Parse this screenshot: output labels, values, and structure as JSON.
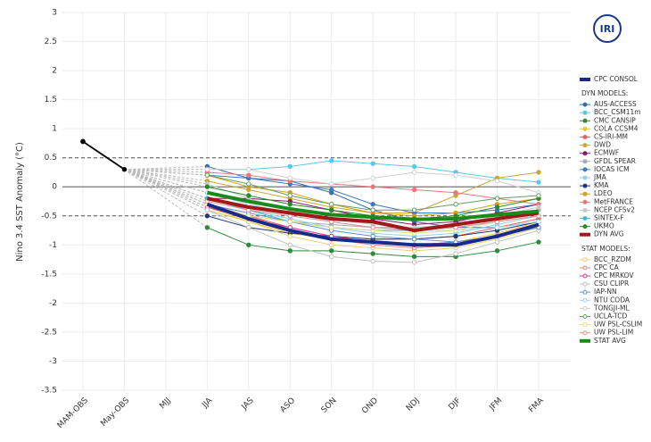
{
  "chart_data": {
    "type": "line",
    "logo_text": "IRI",
    "y_label": "Nino 3.4 SST Anomaly (°C)",
    "categories": [
      "MAM-OBS",
      "May-OBS",
      "MJJ",
      "JJA",
      "JAS",
      "ASO",
      "SON",
      "OND",
      "NDJ",
      "DJF",
      "JFM",
      "FMA"
    ],
    "ylim": [
      -3.5,
      3
    ],
    "yticks": [
      3,
      2.5,
      2,
      1.5,
      1,
      0.5,
      0,
      -0.5,
      -1,
      -1.5,
      -2,
      -2.5,
      -3,
      -3.5
    ],
    "reference_lines": [
      0.5,
      -0.5
    ],
    "zero_line": 0,
    "grid": true,
    "legend_headings": [
      "DYN MODELS:",
      "STAT MODELS:"
    ],
    "observed": {
      "color": "#000000",
      "values": [
        0.78,
        0.3,
        null,
        null,
        null,
        null,
        null,
        null,
        null,
        null,
        null,
        null
      ]
    },
    "series": [
      {
        "name": "CPC CONSOL",
        "color": "#1a2a8a",
        "width": 4,
        "values": [
          null,
          null,
          null,
          -0.3,
          -0.55,
          -0.75,
          -0.9,
          -0.95,
          -1.0,
          -1.0,
          -0.85,
          -0.65
        ]
      },
      {
        "name": "AUS-ACCESS",
        "group": 0,
        "color": "#3a6ea5",
        "values": [
          null,
          null,
          null,
          0.35,
          0.15,
          0.1,
          -0.1,
          -0.4,
          -0.6,
          -0.7,
          -0.7,
          -0.6
        ]
      },
      {
        "name": "BCC_CSM11m",
        "group": 0,
        "color": "#5bc8e8",
        "values": [
          null,
          null,
          null,
          0.3,
          0.3,
          0.35,
          0.45,
          0.4,
          0.35,
          0.25,
          0.15,
          0.08
        ]
      },
      {
        "name": "CMC CANSIP",
        "group": 0,
        "color": "#2e8b3a",
        "values": [
          null,
          null,
          null,
          -0.7,
          -1.0,
          -1.1,
          -1.1,
          -1.15,
          -1.2,
          -1.2,
          -1.1,
          -0.95
        ]
      },
      {
        "name": "COLA CCSM4",
        "group": 0,
        "color": "#e8c840",
        "values": [
          null,
          null,
          null,
          -0.4,
          -0.6,
          -0.8,
          -0.9,
          -0.95,
          -1.0,
          -0.95,
          -0.8,
          -0.6
        ]
      },
      {
        "name": "CS-IRI-MM",
        "group": 0,
        "color": "#e86060",
        "values": [
          null,
          null,
          null,
          -0.3,
          -0.5,
          -0.7,
          -0.85,
          -0.9,
          -0.9,
          -0.85,
          -0.7,
          -0.55
        ]
      },
      {
        "name": "DWD",
        "group": 0,
        "color": "#c8a838",
        "values": [
          null,
          null,
          null,
          0.1,
          -0.05,
          -0.2,
          -0.35,
          -0.45,
          -0.45,
          -0.15,
          0.15,
          0.25
        ]
      },
      {
        "name": "ECMWF",
        "group": 0,
        "color": "#8b1a6b",
        "values": [
          null,
          null,
          null,
          -0.2,
          -0.2,
          -0.25,
          -0.4,
          -0.55,
          -0.65,
          -0.6,
          -0.45,
          -0.3
        ]
      },
      {
        "name": "GFDL SPEAR",
        "group": 0,
        "color": "#aaaaaa",
        "values": [
          null,
          null,
          null,
          -0.35,
          -0.5,
          -0.6,
          -0.65,
          -0.7,
          -0.7,
          -0.65,
          -0.55,
          -0.4
        ]
      },
      {
        "name": "IOCAS ICM",
        "group": 0,
        "color": "#3a78c0",
        "values": [
          null,
          null,
          null,
          0.2,
          0.15,
          0.05,
          -0.05,
          -0.3,
          -0.45,
          -0.45,
          -0.4,
          -0.3
        ]
      },
      {
        "name": "JMA",
        "group": 0,
        "color": "#90d0f0",
        "values": [
          null,
          null,
          null,
          -0.2,
          -0.4,
          -0.55,
          -0.7,
          -0.8,
          -0.85,
          -0.8,
          -0.65,
          -0.5
        ]
      },
      {
        "name": "KMA",
        "group": 0,
        "color": "#1a3a7a",
        "values": [
          null,
          null,
          null,
          -0.5,
          -0.7,
          -0.8,
          -0.85,
          -0.9,
          -0.9,
          -0.85,
          -0.75,
          -0.6
        ]
      },
      {
        "name": "LDEO",
        "group": 0,
        "color": "#d4a020",
        "values": [
          null,
          null,
          null,
          0.2,
          0.0,
          -0.1,
          -0.3,
          -0.45,
          -0.5,
          -0.45,
          -0.3,
          -0.2
        ]
      },
      {
        "name": "MetFRANCE",
        "group": 0,
        "color": "#e87878",
        "values": [
          null,
          null,
          null,
          0.25,
          0.2,
          0.1,
          0.05,
          0.0,
          -0.05,
          -0.1,
          -0.2,
          -0.3
        ]
      },
      {
        "name": "NCEP CFSv2",
        "group": 0,
        "color": "#c8c8c8",
        "values": [
          null,
          null,
          null,
          0.05,
          -0.2,
          -0.4,
          -0.55,
          -0.65,
          -0.7,
          -0.65,
          -0.5,
          -0.35
        ]
      },
      {
        "name": "SINTEX-F",
        "group": 0,
        "color": "#40b8d8",
        "values": [
          null,
          null,
          null,
          -0.2,
          -0.4,
          -0.6,
          -0.7,
          -0.75,
          -0.75,
          -0.7,
          -0.6,
          -0.5
        ]
      },
      {
        "name": "UKMO",
        "group": 0,
        "color": "#2a8a2a",
        "values": [
          null,
          null,
          null,
          0.0,
          -0.15,
          -0.3,
          -0.4,
          -0.5,
          -0.55,
          -0.5,
          -0.35,
          -0.2
        ]
      },
      {
        "name": "DYN AVG",
        "group": 0,
        "color": "#a01818",
        "width": 4,
        "values": [
          null,
          null,
          null,
          -0.2,
          -0.35,
          -0.45,
          -0.55,
          -0.6,
          -0.75,
          -0.65,
          -0.55,
          -0.45
        ]
      },
      {
        "name": "BCC_RZDM",
        "group": 1,
        "color": "#e8d070",
        "values": [
          null,
          null,
          null,
          -0.35,
          -0.6,
          -0.85,
          -1.0,
          -1.05,
          -1.1,
          -1.05,
          -0.9,
          -0.7
        ]
      },
      {
        "name": "CPC CA",
        "group": 1,
        "color": "#f08080",
        "values": [
          null,
          null,
          null,
          -0.3,
          -0.5,
          -0.75,
          -0.9,
          -1.0,
          -1.05,
          -1.0,
          -0.85,
          -0.7
        ]
      },
      {
        "name": "CPC MRKOV",
        "group": 1,
        "color": "#d04090",
        "values": [
          null,
          null,
          null,
          -0.35,
          -0.55,
          -0.7,
          -0.85,
          -0.95,
          -1.0,
          -0.95,
          -0.85,
          -0.7
        ]
      },
      {
        "name": "CSU CLIPR",
        "group": 1,
        "color": "#c0c0c0",
        "values": [
          null,
          null,
          null,
          -0.4,
          -0.7,
          -1.0,
          -1.2,
          -1.28,
          -1.3,
          -1.15,
          -0.95,
          -0.75
        ]
      },
      {
        "name": "IAP-NN",
        "group": 1,
        "color": "#6090d0",
        "values": [
          null,
          null,
          null,
          -0.3,
          -0.45,
          -0.6,
          -0.75,
          -0.85,
          -0.9,
          -0.95,
          -0.85,
          -0.7
        ]
      },
      {
        "name": "NTU CODA",
        "group": 1,
        "color": "#a0d8f0",
        "values": [
          null,
          null,
          null,
          -0.1,
          -0.3,
          -0.45,
          -0.6,
          -0.7,
          -0.75,
          -0.75,
          -0.7,
          -0.6
        ]
      },
      {
        "name": "TONGJI-ML",
        "group": 1,
        "color": "#d0d0d0",
        "values": [
          null,
          null,
          null,
          0.3,
          0.3,
          0.15,
          0.05,
          0.15,
          0.25,
          0.2,
          0.1,
          -0.1
        ]
      },
      {
        "name": "UCLA-TCD",
        "group": 1,
        "color": "#60a060",
        "values": [
          null,
          null,
          null,
          0.2,
          0.05,
          -0.15,
          -0.3,
          -0.4,
          -0.4,
          -0.3,
          -0.2,
          -0.15
        ]
      },
      {
        "name": "UW PSL-CSLIM",
        "group": 1,
        "color": "#e0e080",
        "values": [
          null,
          null,
          null,
          -0.3,
          -0.5,
          -0.6,
          -0.7,
          -0.75,
          -0.8,
          -0.75,
          -0.6,
          -0.5
        ]
      },
      {
        "name": "UW PSL-LIM",
        "group": 1,
        "color": "#e09090",
        "values": [
          null,
          null,
          null,
          -0.25,
          -0.4,
          -0.5,
          -0.6,
          -0.7,
          -0.75,
          -0.7,
          -0.6,
          -0.5
        ]
      },
      {
        "name": "STAT AVG",
        "group": 1,
        "color": "#1a8a1a",
        "width": 4,
        "values": [
          null,
          null,
          null,
          -0.1,
          -0.25,
          -0.38,
          -0.48,
          -0.52,
          -0.56,
          -0.55,
          -0.48,
          -0.42
        ]
      }
    ]
  }
}
